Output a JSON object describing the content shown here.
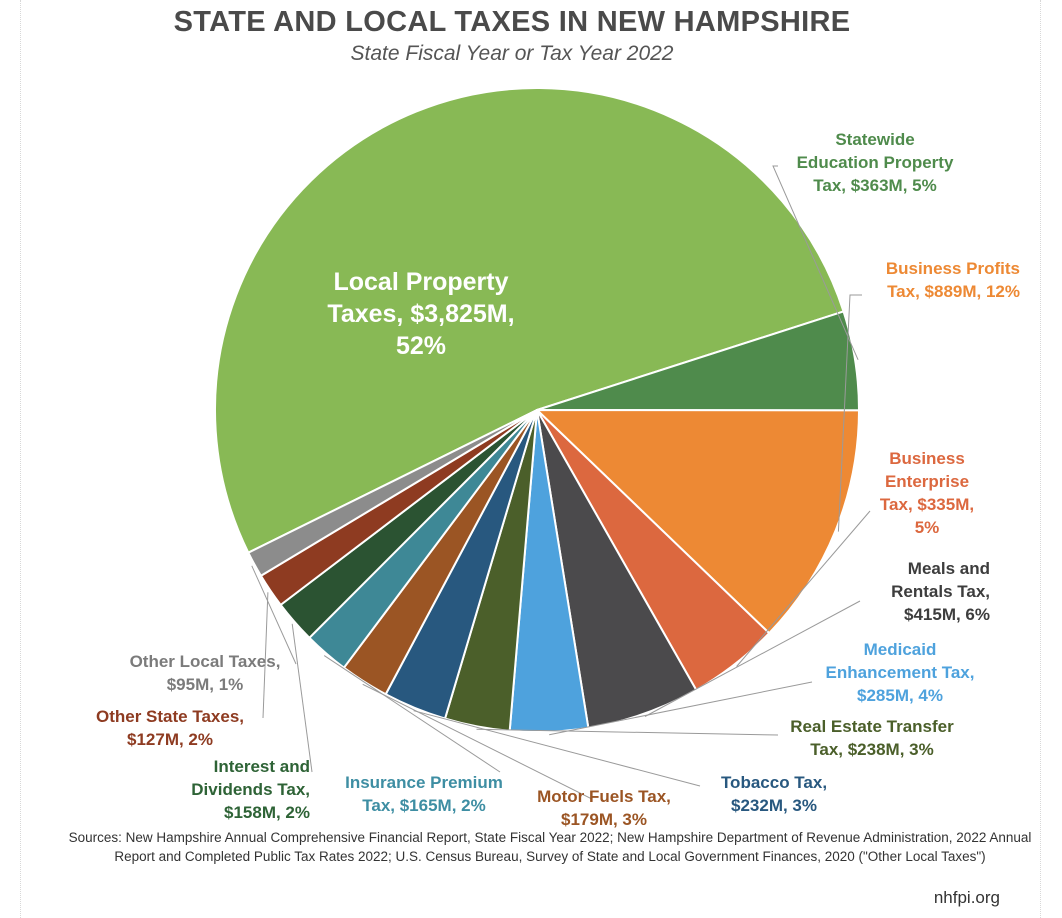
{
  "chart_data": {
    "type": "pie",
    "title": "STATE AND LOCAL TAXES IN NEW HAMPSHIRE",
    "subtitle": "State Fiscal Year or Tax Year 2022",
    "slices": [
      {
        "id": "local-property",
        "value": 3825,
        "color": "#88b955",
        "label_lines": [
          "Local Property",
          "Taxes, $3,825M,",
          "52%"
        ]
      },
      {
        "id": "statewide-education",
        "value": 363,
        "color": "#4f8b4c",
        "label_lines": [
          "Statewide",
          "Education Property",
          "Tax, $363M, 5%"
        ],
        "label_color": "#4f8b4c"
      },
      {
        "id": "business-profits",
        "value": 889,
        "color": "#ed8934",
        "label_lines": [
          "Business Profits",
          "Tax, $889M, 12%"
        ],
        "label_color": "#ed8934"
      },
      {
        "id": "business-enterprise",
        "value": 335,
        "color": "#dc683f",
        "label_lines": [
          "Business",
          "Enterprise",
          "Tax, $335M,",
          "5%"
        ],
        "label_color": "#dc683f"
      },
      {
        "id": "meals-rentals",
        "value": 415,
        "color": "#4b4a4c",
        "label_lines": [
          "Meals and",
          "Rentals Tax,",
          "$415M, 6%"
        ],
        "label_color": "#3d3d3d"
      },
      {
        "id": "medicaid-enhancement",
        "value": 285,
        "color": "#4ea2dd",
        "label_lines": [
          "Medicaid",
          "Enhancement Tax,",
          "$285M, 4%"
        ],
        "label_color": "#4ea2dd"
      },
      {
        "id": "real-estate-transfer",
        "value": 238,
        "color": "#4b5f2a",
        "label_lines": [
          "Real Estate Transfer",
          "Tax, $238M, 3%"
        ],
        "label_color": "#4b5f2a"
      },
      {
        "id": "tobacco",
        "value": 232,
        "color": "#28587f",
        "label_lines": [
          "Tobacco Tax,",
          "$232M, 3%"
        ],
        "label_color": "#28587f"
      },
      {
        "id": "motor-fuels",
        "value": 179,
        "color": "#9b5524",
        "label_lines": [
          "Motor Fuels Tax,",
          "$179M, 3%"
        ],
        "label_color": "#9b5524"
      },
      {
        "id": "insurance-premium",
        "value": 165,
        "color": "#3e8896",
        "label_lines": [
          "Insurance Premium",
          "Tax, $165M, 2%"
        ],
        "label_color": "#3e8ea3"
      },
      {
        "id": "interest-dividends",
        "value": 158,
        "color": "#2b5332",
        "label_lines": [
          "Interest and",
          "Dividends Tax,",
          "$158M, 2%"
        ],
        "label_color": "#2e6336"
      },
      {
        "id": "other-state",
        "value": 127,
        "color": "#8e3b21",
        "label_lines": [
          "Other State Taxes,",
          "$127M, 2%"
        ],
        "label_color": "#8e3b21"
      },
      {
        "id": "other-local",
        "value": 95,
        "color": "#8c8c8c",
        "label_lines": [
          "Other Local Taxes,",
          "$95M, 1%"
        ],
        "label_color": "#7b7b7b"
      }
    ]
  },
  "sources": "Sources: New Hampshire Annual Comprehensive Financial Report, State Fiscal Year 2022; New Hampshire Department of Revenue Administration, 2022 Annual Report and Completed Public Tax Rates 2022; U.S. Census Bureau, Survey of State and Local Government Finances, 2020 (\"Other Local Taxes\")",
  "credit": "nhfpi.org"
}
